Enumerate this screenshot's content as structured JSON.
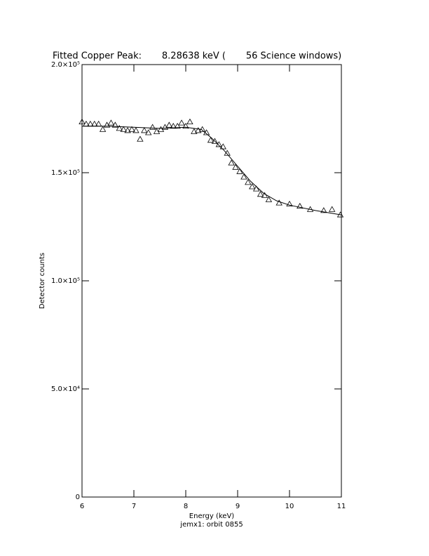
{
  "chart_data": {
    "type": "scatter",
    "title": "Fitted Copper Peak:       8.28638 keV (       56 Science windows)",
    "x_label": "Energy (keV)",
    "y_label": "Detector counts",
    "footer": "jemx1: orbit 0855",
    "xlim": [
      6,
      11
    ],
    "xticks": [
      6,
      7,
      8,
      9,
      10,
      11
    ],
    "ylim": [
      0,
      200000
    ],
    "yticks": [
      0,
      {
        "value": 50000,
        "label": "5.0×10⁴"
      },
      {
        "value": 100000,
        "label": "1.0×10⁵"
      },
      {
        "value": 150000,
        "label": "1.5×10⁵"
      },
      {
        "value": 200000,
        "label": "2.0×10⁵"
      }
    ],
    "x": [
      6.0,
      6.08,
      6.16,
      6.24,
      6.32,
      6.4,
      6.48,
      6.56,
      6.64,
      6.72,
      6.8,
      6.88,
      6.96,
      7.04,
      7.12,
      7.2,
      7.28,
      7.36,
      7.44,
      7.52,
      7.6,
      7.68,
      7.76,
      7.84,
      7.92,
      8.0,
      8.08,
      8.16,
      8.24,
      8.32,
      8.4,
      8.48,
      8.56,
      8.64,
      8.72,
      8.8,
      8.88,
      8.96,
      9.04,
      9.12,
      9.2,
      9.28,
      9.36,
      9.44,
      9.52,
      9.6,
      9.8,
      10.0,
      10.2,
      10.4,
      10.66,
      10.82,
      10.98
    ],
    "values": [
      173500,
      172500,
      172500,
      172500,
      172500,
      170000,
      172000,
      173000,
      172000,
      170500,
      170000,
      169500,
      170000,
      169500,
      165500,
      169500,
      168500,
      171000,
      169000,
      170000,
      171000,
      172000,
      171500,
      171500,
      173000,
      171500,
      173500,
      169000,
      169500,
      170000,
      168500,
      165000,
      164500,
      163000,
      162000,
      159000,
      154500,
      152500,
      150500,
      148000,
      145500,
      143500,
      142500,
      140000,
      139500,
      137500,
      136000,
      135500,
      134500,
      133000,
      132500,
      133000,
      130500
    ],
    "fit": {
      "x": [
        6.0,
        6.5,
        7.0,
        7.5,
        8.0,
        8.3,
        8.5,
        8.75,
        9.0,
        9.25,
        9.5,
        9.75,
        10.0,
        10.5,
        11.0
      ],
      "values": [
        171500,
        171500,
        171000,
        170500,
        171000,
        170000,
        166000,
        160000,
        153000,
        146000,
        140500,
        137000,
        135000,
        132500,
        130500
      ]
    }
  }
}
